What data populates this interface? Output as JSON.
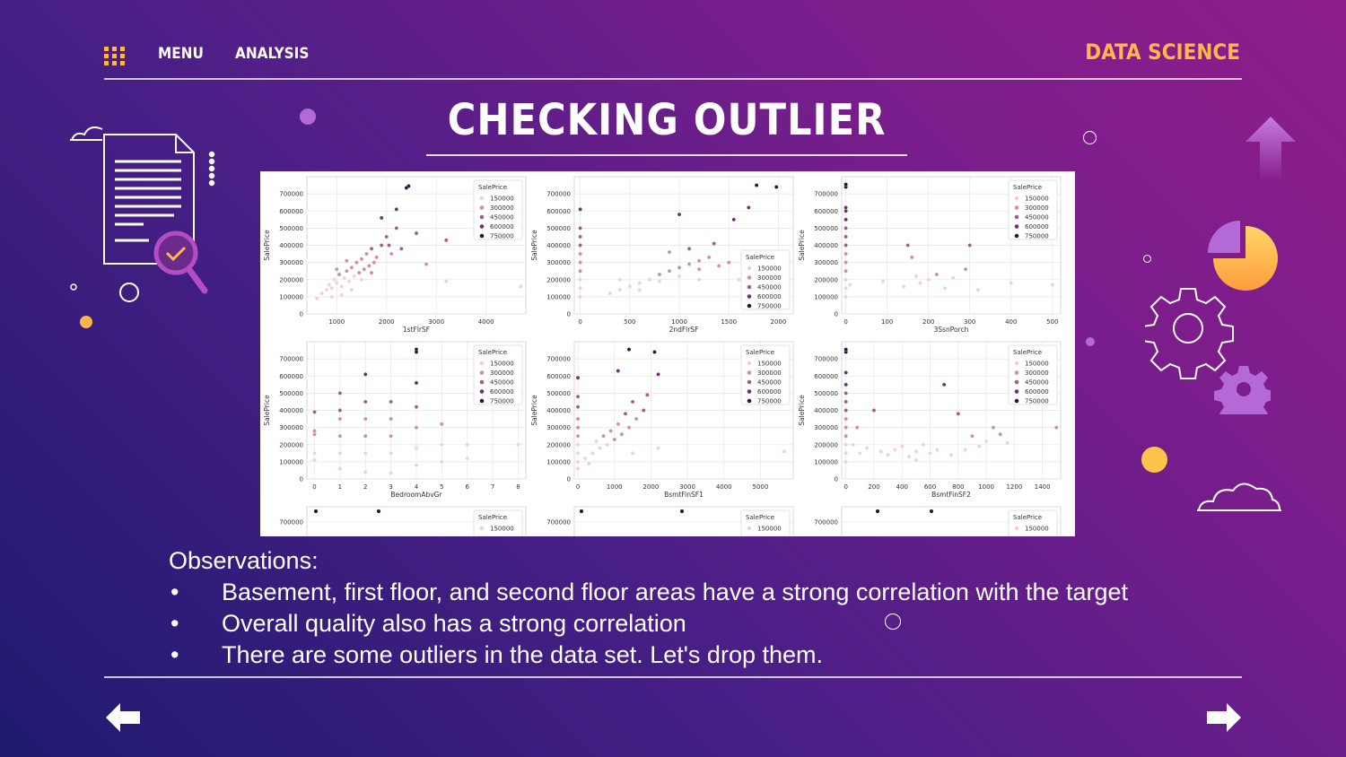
{
  "nav": {
    "menu_label": "MENU",
    "analysis_label": "ANALYSIS",
    "brand": "DATA SCIENCE"
  },
  "title": "CHECKING OUTLIER",
  "icons": {
    "grid": "grid-menu-icon",
    "document": "document-search-icon",
    "pie": "pie-chart-icon",
    "gear": "gear-icon",
    "arrow_up": "arrow-up-icon",
    "prev": "arrow-left-icon",
    "next": "arrow-right-icon"
  },
  "colors": {
    "accent": "#ffb74a",
    "series": [
      "#eed2cf",
      "#d08f9d",
      "#a05e8e",
      "#6e3170",
      "#2d1337"
    ]
  },
  "observations": {
    "heading": "Observations:",
    "bullet": "•",
    "items": [
      "Basement, first floor, and second floor areas have a strong correlation with the target",
      "Overall quality also has a strong correlation",
      "There are some outliers in the data set. Let's drop them."
    ]
  },
  "chart_data": [
    {
      "type": "scatter",
      "xlabel": "1stFlrSF",
      "ylabel": "SalePrice",
      "xticks": [
        1000,
        2000,
        3000,
        4000
      ],
      "xlim": [
        400,
        4800
      ],
      "ylim": [
        0,
        800000
      ],
      "yticks": [
        0,
        100000,
        200000,
        300000,
        400000,
        500000,
        600000,
        700000
      ],
      "legend": {
        "title": "SalePrice",
        "entries": [
          "150000",
          "300000",
          "450000",
          "600000",
          "750000"
        ],
        "position": "top-right"
      },
      "points": [
        [
          700,
          120000
        ],
        [
          800,
          140000
        ],
        [
          850,
          170000
        ],
        [
          900,
          150000
        ],
        [
          950,
          200000
        ],
        [
          1000,
          180000
        ],
        [
          1050,
          230000
        ],
        [
          1100,
          160000
        ],
        [
          1150,
          210000
        ],
        [
          1200,
          250000
        ],
        [
          1250,
          190000
        ],
        [
          1300,
          270000
        ],
        [
          1350,
          220000
        ],
        [
          1400,
          300000
        ],
        [
          1450,
          240000
        ],
        [
          1500,
          320000
        ],
        [
          1550,
          260000
        ],
        [
          1600,
          350000
        ],
        [
          1650,
          280000
        ],
        [
          1700,
          380000
        ],
        [
          1750,
          300000
        ],
        [
          1800,
          330000
        ],
        [
          1900,
          400000
        ],
        [
          2000,
          450000
        ],
        [
          2100,
          350000
        ],
        [
          2200,
          500000
        ],
        [
          2300,
          380000
        ],
        [
          1300,
          140000
        ],
        [
          1100,
          110000
        ],
        [
          900,
          100000
        ],
        [
          1500,
          200000
        ],
        [
          1700,
          240000
        ],
        [
          2444,
          745000
        ],
        [
          2400,
          735000
        ],
        [
          2200,
          610000
        ],
        [
          1900,
          560000
        ],
        [
          2600,
          470000
        ],
        [
          2800,
          290000
        ],
        [
          3200,
          430000
        ],
        [
          3200,
          190000
        ],
        [
          4700,
          160000
        ],
        [
          600,
          90000
        ],
        [
          1000,
          260000
        ],
        [
          1200,
          310000
        ],
        [
          2050,
          400000
        ]
      ]
    },
    {
      "type": "scatter",
      "xlabel": "2ndFlrSF",
      "ylabel": "SalePrice",
      "xticks": [
        0,
        500,
        1000,
        1500,
        2000
      ],
      "xlim": [
        -60,
        2150
      ],
      "ylim": [
        0,
        800000
      ],
      "yticks": [
        0,
        100000,
        200000,
        300000,
        400000,
        500000,
        600000,
        700000
      ],
      "legend": {
        "title": "SalePrice",
        "entries": [
          "150000",
          "300000",
          "450000",
          "600000",
          "750000"
        ],
        "position": "center-right"
      },
      "points": [
        [
          0,
          100000
        ],
        [
          0,
          150000
        ],
        [
          0,
          200000
        ],
        [
          0,
          250000
        ],
        [
          0,
          300000
        ],
        [
          0,
          350000
        ],
        [
          0,
          400000
        ],
        [
          0,
          450000
        ],
        [
          0,
          500000
        ],
        [
          0,
          610000
        ],
        [
          300,
          120000
        ],
        [
          400,
          140000
        ],
        [
          500,
          160000
        ],
        [
          600,
          180000
        ],
        [
          700,
          200000
        ],
        [
          800,
          230000
        ],
        [
          900,
          250000
        ],
        [
          1000,
          270000
        ],
        [
          1100,
          290000
        ],
        [
          1200,
          310000
        ],
        [
          1300,
          330000
        ],
        [
          1400,
          280000
        ],
        [
          1500,
          300000
        ],
        [
          600,
          140000
        ],
        [
          800,
          190000
        ],
        [
          1000,
          220000
        ],
        [
          1200,
          260000
        ],
        [
          900,
          360000
        ],
        [
          1100,
          380000
        ],
        [
          1350,
          410000
        ],
        [
          1550,
          550000
        ],
        [
          1700,
          620000
        ],
        [
          1780,
          750000
        ],
        [
          1980,
          740000
        ],
        [
          1600,
          200000
        ],
        [
          1850,
          180000
        ],
        [
          1000,
          580000
        ],
        [
          400,
          200000
        ],
        [
          1200,
          200000
        ]
      ]
    },
    {
      "type": "scatter",
      "xlabel": "3SsnPorch",
      "ylabel": "SalePrice",
      "xticks": [
        0,
        100,
        200,
        300,
        400,
        500
      ],
      "xlim": [
        -10,
        520
      ],
      "ylim": [
        0,
        800000
      ],
      "yticks": [
        0,
        100000,
        200000,
        300000,
        400000,
        500000,
        600000,
        700000
      ],
      "legend": {
        "title": "SalePrice",
        "entries": [
          "150000",
          "300000",
          "450000",
          "600000",
          "750000"
        ],
        "position": "top-right"
      },
      "points": [
        [
          0,
          100000
        ],
        [
          0,
          150000
        ],
        [
          0,
          200000
        ],
        [
          0,
          250000
        ],
        [
          0,
          300000
        ],
        [
          0,
          350000
        ],
        [
          0,
          400000
        ],
        [
          0,
          450000
        ],
        [
          0,
          500000
        ],
        [
          0,
          550000
        ],
        [
          0,
          600000
        ],
        [
          0,
          620000
        ],
        [
          0,
          740000
        ],
        [
          0,
          755000
        ],
        [
          140,
          160000
        ],
        [
          150,
          400000
        ],
        [
          160,
          330000
        ],
        [
          170,
          220000
        ],
        [
          180,
          180000
        ],
        [
          200,
          200000
        ],
        [
          220,
          230000
        ],
        [
          240,
          150000
        ],
        [
          260,
          210000
        ],
        [
          290,
          260000
        ],
        [
          300,
          400000
        ],
        [
          320,
          140000
        ],
        [
          400,
          180000
        ],
        [
          500,
          170000
        ],
        [
          10,
          170000
        ],
        [
          90,
          190000
        ]
      ]
    },
    {
      "type": "scatter",
      "xlabel": "BedroomAbvGr",
      "ylabel": "SalePrice",
      "xticks": [
        0,
        1,
        2,
        3,
        4,
        5,
        6,
        7,
        8
      ],
      "xlim": [
        -0.3,
        8.3
      ],
      "ylim": [
        0,
        800000
      ],
      "yticks": [
        0,
        100000,
        200000,
        300000,
        400000,
        500000,
        600000,
        700000
      ],
      "legend": {
        "title": "SalePrice",
        "entries": [
          "150000",
          "300000",
          "450000",
          "600000",
          "750000"
        ],
        "position": "top-right"
      },
      "points": [
        [
          0,
          110000
        ],
        [
          0,
          150000
        ],
        [
          0,
          260000
        ],
        [
          0,
          280000
        ],
        [
          0,
          390000
        ],
        [
          1,
          60000
        ],
        [
          1,
          150000
        ],
        [
          1,
          250000
        ],
        [
          1,
          350000
        ],
        [
          1,
          400000
        ],
        [
          1,
          500000
        ],
        [
          2,
          40000
        ],
        [
          2,
          150000
        ],
        [
          2,
          250000
        ],
        [
          2,
          350000
        ],
        [
          2,
          450000
        ],
        [
          2,
          610000
        ],
        [
          3,
          35000
        ],
        [
          3,
          150000
        ],
        [
          3,
          250000
        ],
        [
          3,
          350000
        ],
        [
          3,
          450000
        ],
        [
          4,
          80000
        ],
        [
          4,
          180000
        ],
        [
          4,
          300000
        ],
        [
          4,
          420000
        ],
        [
          4,
          560000
        ],
        [
          4,
          755000
        ],
        [
          4,
          740000
        ],
        [
          5,
          100000
        ],
        [
          5,
          200000
        ],
        [
          5,
          320000
        ],
        [
          6,
          120000
        ],
        [
          6,
          200000
        ],
        [
          8,
          200000
        ]
      ]
    },
    {
      "type": "scatter",
      "xlabel": "BsmtFinSF1",
      "ylabel": "SalePrice",
      "xticks": [
        0,
        1000,
        2000,
        3000,
        4000,
        5000
      ],
      "xlim": [
        -100,
        5900
      ],
      "ylim": [
        0,
        800000
      ],
      "yticks": [
        0,
        100000,
        200000,
        300000,
        400000,
        500000,
        600000,
        700000
      ],
      "legend": {
        "title": "SalePrice",
        "entries": [
          "150000",
          "300000",
          "450000",
          "600000",
          "750000"
        ],
        "position": "top-right"
      },
      "points": [
        [
          0,
          60000
        ],
        [
          0,
          100000
        ],
        [
          0,
          150000
        ],
        [
          0,
          200000
        ],
        [
          0,
          250000
        ],
        [
          0,
          300000
        ],
        [
          0,
          350000
        ],
        [
          0,
          420000
        ],
        [
          0,
          480000
        ],
        [
          0,
          590000
        ],
        [
          200,
          120000
        ],
        [
          400,
          150000
        ],
        [
          600,
          180000
        ],
        [
          800,
          200000
        ],
        [
          1000,
          230000
        ],
        [
          1200,
          260000
        ],
        [
          1400,
          300000
        ],
        [
          1600,
          350000
        ],
        [
          1800,
          400000
        ],
        [
          500,
          220000
        ],
        [
          700,
          250000
        ],
        [
          900,
          280000
        ],
        [
          1100,
          320000
        ],
        [
          1300,
          380000
        ],
        [
          1500,
          450000
        ],
        [
          1100,
          630000
        ],
        [
          1400,
          755000
        ],
        [
          2100,
          740000
        ],
        [
          2200,
          610000
        ],
        [
          1900,
          490000
        ],
        [
          2200,
          180000
        ],
        [
          5650,
          160000
        ],
        [
          300,
          90000
        ],
        [
          1500,
          150000
        ]
      ]
    },
    {
      "type": "scatter",
      "xlabel": "BsmtFinSF2",
      "ylabel": "SalePrice",
      "xticks": [
        0,
        200,
        400,
        600,
        800,
        1000,
        1200,
        1400
      ],
      "xlim": [
        -30,
        1530
      ],
      "ylim": [
        0,
        800000
      ],
      "yticks": [
        0,
        100000,
        200000,
        300000,
        400000,
        500000,
        600000,
        700000
      ],
      "legend": {
        "title": "SalePrice",
        "entries": [
          "150000",
          "300000",
          "450000",
          "600000",
          "750000"
        ],
        "position": "top-right"
      },
      "points": [
        [
          0,
          100000
        ],
        [
          0,
          150000
        ],
        [
          0,
          200000
        ],
        [
          0,
          250000
        ],
        [
          0,
          300000
        ],
        [
          0,
          350000
        ],
        [
          0,
          400000
        ],
        [
          0,
          450000
        ],
        [
          0,
          500000
        ],
        [
          0,
          550000
        ],
        [
          0,
          620000
        ],
        [
          0,
          740000
        ],
        [
          0,
          755000
        ],
        [
          50,
          200000
        ],
        [
          100,
          150000
        ],
        [
          150,
          180000
        ],
        [
          200,
          400000
        ],
        [
          250,
          160000
        ],
        [
          300,
          140000
        ],
        [
          350,
          170000
        ],
        [
          400,
          190000
        ],
        [
          450,
          130000
        ],
        [
          500,
          160000
        ],
        [
          550,
          200000
        ],
        [
          600,
          150000
        ],
        [
          650,
          170000
        ],
        [
          700,
          550000
        ],
        [
          750,
          140000
        ],
        [
          800,
          380000
        ],
        [
          850,
          170000
        ],
        [
          900,
          250000
        ],
        [
          950,
          190000
        ],
        [
          1000,
          220000
        ],
        [
          1050,
          300000
        ],
        [
          1100,
          260000
        ],
        [
          1150,
          210000
        ],
        [
          1500,
          300000
        ],
        [
          80,
          300000
        ],
        [
          500,
          110000
        ]
      ]
    }
  ]
}
